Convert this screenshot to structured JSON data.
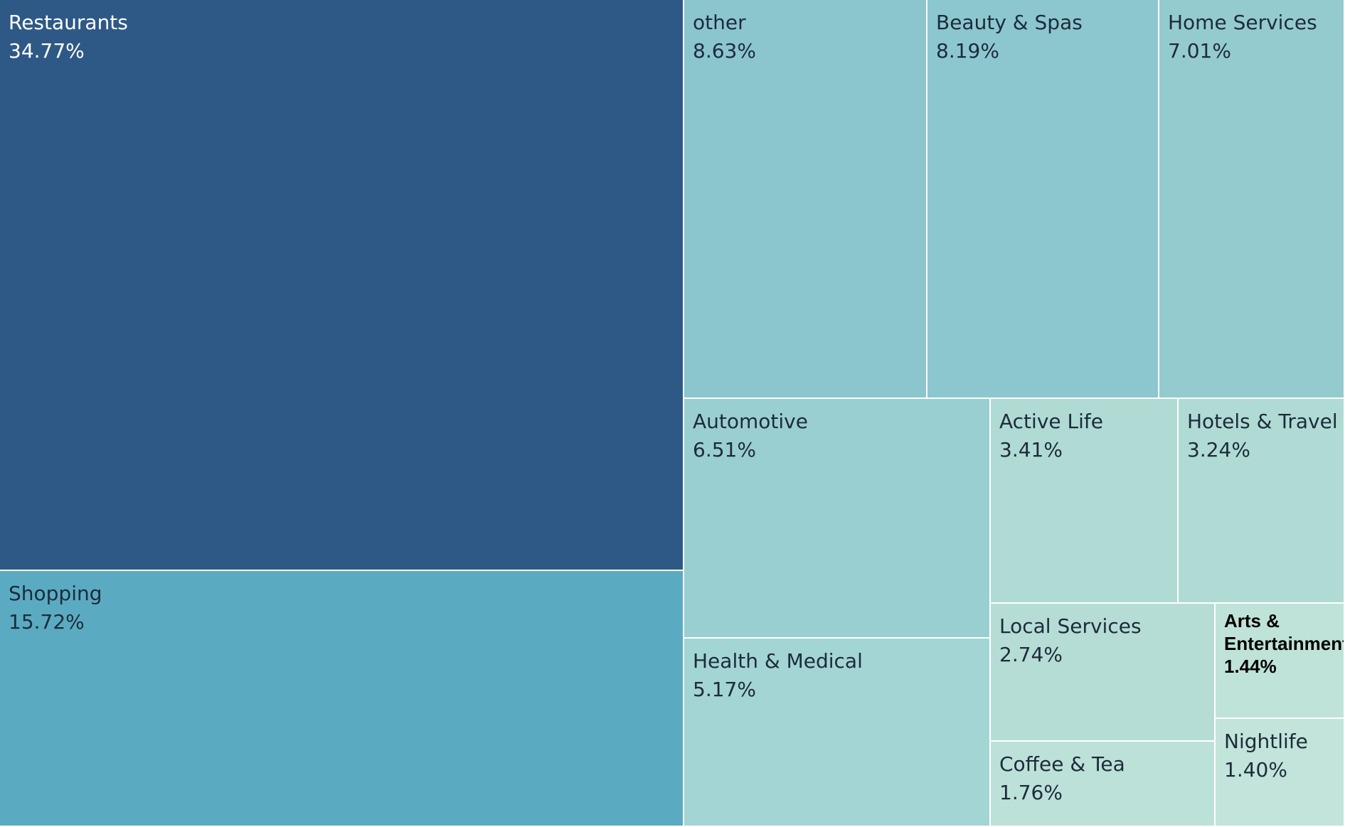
{
  "chart_data": {
    "type": "treemap",
    "title": "",
    "tiles": [
      {
        "name": "Restaurants",
        "value": 34.77,
        "label": "34.77%",
        "color": "#2e5986",
        "text_color": "#ffffff"
      },
      {
        "name": "Shopping",
        "value": 15.72,
        "label": "15.72%",
        "color": "#5aabc2",
        "text_color": "#1d2b3a"
      },
      {
        "name": "other",
        "value": 8.63,
        "label": "8.63%",
        "color": "#8bc6cf",
        "text_color": "#1d2b3a"
      },
      {
        "name": "Beauty & Spas",
        "value": 8.19,
        "label": "8.19%",
        "color": "#8cc7cf",
        "text_color": "#1d2b3a"
      },
      {
        "name": "Home Services",
        "value": 7.01,
        "label": "7.01%",
        "color": "#94cbcf",
        "text_color": "#1d2b3a"
      },
      {
        "name": "Automotive",
        "value": 6.51,
        "label": "6.51%",
        "color": "#9acfd1",
        "text_color": "#1d2b3a"
      },
      {
        "name": "Health & Medical",
        "value": 5.17,
        "label": "5.17%",
        "color": "#a2d5d4",
        "text_color": "#1d2b3a"
      },
      {
        "name": "Active Life",
        "value": 3.41,
        "label": "3.41%",
        "color": "#afdbd4",
        "text_color": "#1d2b3a"
      },
      {
        "name": "Hotels & Travel",
        "value": 3.24,
        "label": "3.24%",
        "color": "#b0dbd5",
        "text_color": "#1d2b3a"
      },
      {
        "name": "Local Services",
        "value": 2.74,
        "label": "2.74%",
        "color": "#b5ddd6",
        "text_color": "#1d2b3a"
      },
      {
        "name": "Coffee & Tea",
        "value": 1.76,
        "label": "1.76%",
        "color": "#bce1d9",
        "text_color": "#1d2b3a"
      },
      {
        "name": "Arts & Entertainment",
        "value": 1.44,
        "label": "1.44%",
        "color": "#bfe3d8",
        "text_color": "#000000"
      },
      {
        "name": "Nightlife",
        "value": 1.4,
        "label": "1.40%",
        "color": "#c2e4da",
        "text_color": "#1d2b3a"
      }
    ]
  }
}
